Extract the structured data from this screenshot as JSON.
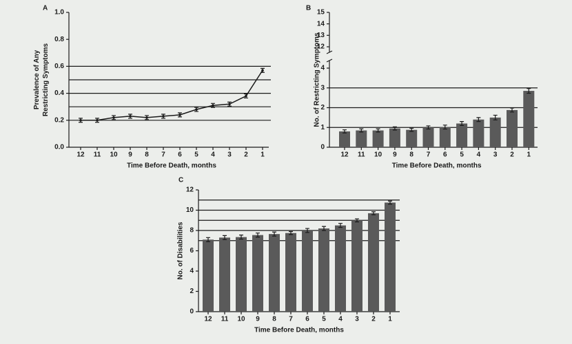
{
  "chart_data": [
    {
      "type": "line",
      "panel_label": "A",
      "ylabel": [
        "Prevalence of Any",
        "Restricting Symptoms"
      ],
      "xlabel": "Time Before Death, months",
      "categories": [
        "12",
        "11",
        "10",
        "9",
        "8",
        "7",
        "6",
        "5",
        "4",
        "3",
        "2",
        "1"
      ],
      "values": [
        0.2,
        0.2,
        0.22,
        0.23,
        0.22,
        0.23,
        0.24,
        0.28,
        0.31,
        0.32,
        0.38,
        0.57
      ],
      "errors": [
        0.015,
        0.015,
        0.015,
        0.015,
        0.015,
        0.015,
        0.015,
        0.015,
        0.015,
        0.015,
        0.015,
        0.015
      ],
      "color": "#1a1a1a",
      "ylim": [
        0,
        1.0
      ],
      "yticks": [
        {
          "value": 0,
          "label": "0.0"
        },
        0.2,
        0.4,
        0.6,
        0.8,
        {
          "value": 1.0,
          "label": "1.0"
        }
      ],
      "reference_lines": [
        0.2,
        0.3,
        0.4,
        0.5,
        0.6
      ]
    },
    {
      "type": "bar",
      "panel_label": "B",
      "ylabel": [
        "No. of Restricting Symptoms"
      ],
      "xlabel": "Time Before Death, months",
      "categories": [
        "12",
        "11",
        "10",
        "9",
        "8",
        "7",
        "6",
        "5",
        "4",
        "3",
        "2",
        "1"
      ],
      "values": [
        0.8,
        0.85,
        0.85,
        0.95,
        0.88,
        1.0,
        1.02,
        1.2,
        1.4,
        1.5,
        1.88,
        2.85
      ],
      "errors": [
        0.08,
        0.08,
        0.08,
        0.08,
        0.08,
        0.08,
        0.1,
        0.1,
        0.1,
        0.12,
        0.1,
        0.12
      ],
      "color": "#5a5a5a",
      "ylim": [
        0,
        4
      ],
      "yticks": [
        0,
        1,
        2,
        3,
        4
      ],
      "ylim_upper": [
        12,
        15
      ],
      "yticks_upper": [
        12,
        13,
        14,
        15
      ],
      "reference_lines": [
        1,
        2,
        3
      ]
    },
    {
      "type": "bar",
      "panel_label": "C",
      "ylabel": [
        "No. of Disabilities"
      ],
      "xlabel": "Time Before Death, months",
      "categories": [
        "12",
        "11",
        "10",
        "9",
        "8",
        "7",
        "6",
        "5",
        "4",
        "3",
        "2",
        "1"
      ],
      "values": [
        7.1,
        7.3,
        7.35,
        7.55,
        7.65,
        7.75,
        8.0,
        8.2,
        8.5,
        9.0,
        9.7,
        10.75
      ],
      "errors": [
        0.2,
        0.2,
        0.2,
        0.2,
        0.2,
        0.15,
        0.2,
        0.2,
        0.2,
        0.15,
        0.15,
        0.15
      ],
      "color": "#5a5a5a",
      "ylim": [
        0,
        12
      ],
      "yticks": [
        0,
        2,
        4,
        6,
        8,
        10,
        12
      ],
      "reference_lines": [
        7,
        8,
        9,
        10,
        11
      ]
    }
  ]
}
